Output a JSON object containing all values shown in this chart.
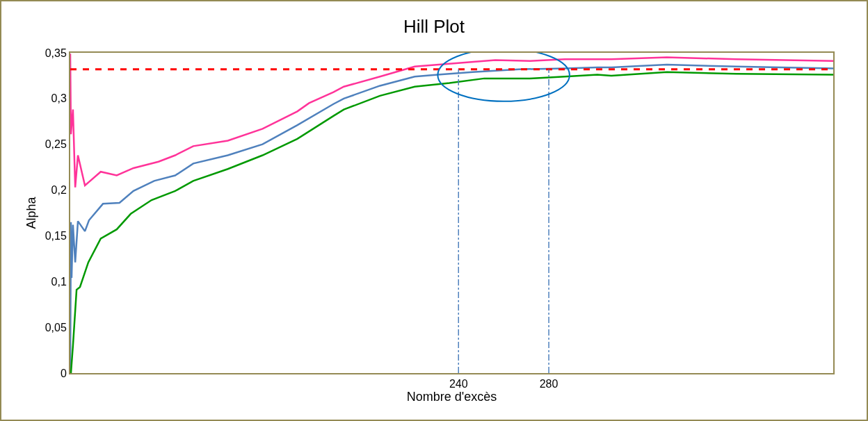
{
  "chart_data": {
    "type": "line",
    "title": "Hill Plot",
    "xlabel": "Nombre d'excès",
    "ylabel": "Alpha",
    "xlim": [
      68,
      406
    ],
    "xticks": [
      240,
      280
    ],
    "ylim": [
      0,
      0.35
    ],
    "yticks": [
      {
        "value": 0,
        "label": "0"
      },
      {
        "value": 0.05,
        "label": "0,05"
      },
      {
        "value": 0.1,
        "label": "0,1"
      },
      {
        "value": 0.15,
        "label": "0,15"
      },
      {
        "value": 0.2,
        "label": "0,2"
      },
      {
        "value": 0.25,
        "label": "0,25"
      },
      {
        "value": 0.3,
        "label": "0,3"
      },
      {
        "value": 0.35,
        "label": "0,35"
      }
    ],
    "grid": false,
    "marker": "none",
    "line_style": "solid",
    "series": [
      {
        "color": "#ff3399",
        "x": [
          68,
          68.3,
          69.2,
          70.2,
          71.4,
          74.5,
          81.5,
          88.6,
          96,
          107.1,
          114.5,
          122.5,
          137.8,
          153.2,
          168.6,
          173.8,
          184.6,
          189.2,
          205.2,
          220.6,
          236,
          256.3,
          271.7,
          287.1,
          307.7,
          332.3,
          363.1,
          406
        ],
        "values": [
          0.349,
          0.261,
          0.288,
          0.203,
          0.238,
          0.205,
          0.22,
          0.216,
          0.224,
          0.231,
          0.238,
          0.248,
          0.254,
          0.267,
          0.286,
          0.295,
          0.307,
          0.313,
          0.324,
          0.335,
          0.338,
          0.342,
          0.341,
          0.343,
          0.343,
          0.345,
          0.343,
          0.341
        ]
      },
      {
        "color": "#4f81bd",
        "x": [
          68,
          68.3,
          68.6,
          69.2,
          70.2,
          71.4,
          74.5,
          76.3,
          82.5,
          89.8,
          96,
          105.2,
          114.5,
          122.5,
          137.8,
          153.2,
          168.6,
          184.6,
          189.2,
          205.2,
          220.6,
          230.8,
          246.2,
          266.8,
          287.1,
          301.5,
          307.7,
          332.3,
          363.1,
          406
        ],
        "values": [
          0,
          0.165,
          0.104,
          0.162,
          0.121,
          0.166,
          0.155,
          0.167,
          0.185,
          0.186,
          0.199,
          0.21,
          0.216,
          0.229,
          0.238,
          0.25,
          0.271,
          0.294,
          0.3,
          0.314,
          0.324,
          0.326,
          0.329,
          0.332,
          0.333,
          0.334,
          0.334,
          0.337,
          0.335,
          0.333
        ]
      },
      {
        "color": "#009900",
        "x": [
          68.3,
          69.2,
          70.8,
          72.3,
          76,
          81.5,
          88.6,
          94.8,
          104,
          114.5,
          122.5,
          137.8,
          153.2,
          168.6,
          184.6,
          189.2,
          205.2,
          220.6,
          236,
          251.4,
          271.7,
          287.1,
          301.5,
          307.7,
          332.3,
          363.1,
          406
        ],
        "values": [
          0,
          0.03,
          0.091,
          0.094,
          0.121,
          0.147,
          0.157,
          0.174,
          0.189,
          0.199,
          0.21,
          0.223,
          0.238,
          0.256,
          0.281,
          0.288,
          0.303,
          0.313,
          0.317,
          0.322,
          0.322,
          0.324,
          0.326,
          0.325,
          0.329,
          0.327,
          0.326
        ]
      }
    ],
    "ref_lines": [
      {
        "axis": "y",
        "value": 0.332,
        "color": "#ff0000",
        "line_style": "dashed"
      },
      {
        "axis": "x",
        "value": 240,
        "color": "#4f81bd",
        "line_style": "dashdot"
      },
      {
        "axis": "x",
        "value": 280,
        "color": "#4f81bd",
        "line_style": "dashdot"
      }
    ]
  }
}
